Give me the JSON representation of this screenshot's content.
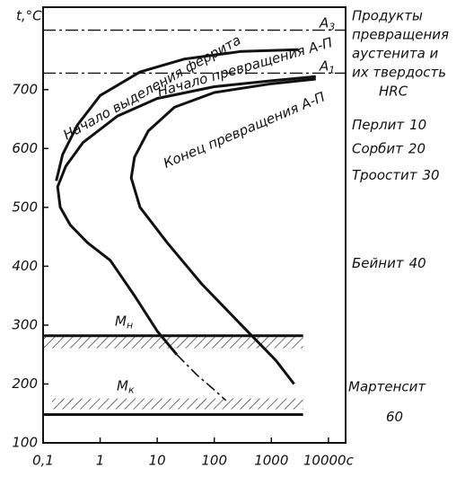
{
  "chart_data": {
    "type": "line",
    "x_log": true,
    "y_label": "t,°C",
    "xlim": [
      0.1,
      20000
    ],
    "ylim": [
      100,
      840
    ],
    "xticks": [
      {
        "value": 0.1,
        "label": "0,1"
      },
      1,
      10,
      100,
      1000,
      {
        "value": 10000,
        "label": "10000с"
      }
    ],
    "yticks": [
      100,
      200,
      300,
      400,
      500,
      600,
      700
    ],
    "series": [
      {
        "name": "Начало выделения феррита",
        "color": "#111",
        "style": "solid",
        "x": [
          3000,
          300,
          30,
          5,
          1,
          0.4,
          0.22,
          0.17
        ],
        "values": [
          768,
          765,
          752,
          730,
          690,
          640,
          590,
          545
        ]
      },
      {
        "name": "Начало превращения А-П",
        "color": "#111",
        "style": "solid",
        "x": [
          6000,
          1000,
          100,
          10,
          2,
          0.5,
          0.25,
          0.18,
          0.2,
          0.3,
          0.6,
          1.5,
          4,
          10,
          22
        ],
        "values": [
          722,
          715,
          705,
          685,
          655,
          610,
          570,
          535,
          500,
          470,
          440,
          410,
          350,
          290,
          250
        ]
      },
      {
        "color": "#111",
        "style": "dashdot",
        "x": [
          22,
          50,
          100,
          160
        ],
        "values": [
          250,
          215,
          190,
          172
        ]
      },
      {
        "name": "Конец превращения А-П",
        "color": "#111",
        "style": "solid",
        "x": [
          6000,
          1000,
          100,
          20,
          7,
          4,
          3.5,
          5,
          15,
          60,
          300,
          1200,
          2500
        ],
        "values": [
          718,
          710,
          695,
          670,
          630,
          585,
          550,
          500,
          440,
          370,
          300,
          240,
          200
        ]
      }
    ],
    "reference_lines": [
      {
        "label": "A",
        "sub": "3",
        "value": 801,
        "style": "dashdot"
      },
      {
        "label": "A",
        "sub": "1",
        "value": 728,
        "style": "dashdot"
      },
      {
        "label": "M",
        "sub": "н",
        "value": 282,
        "style": "thick",
        "xmax": 3600,
        "hatch": "below"
      },
      {
        "label": "M",
        "sub": "к",
        "value": 148,
        "style": "thick",
        "xmax": 3600,
        "hatch": "above"
      }
    ],
    "side_header": [
      "Продукты",
      "превращения",
      "аустенита и",
      "их твердость",
      "HRC"
    ],
    "products": [
      {
        "name": "Перлит",
        "hrc": 10,
        "t": 640
      },
      {
        "name": "Сорбит",
        "hrc": 20,
        "t": 600
      },
      {
        "name": "Троостит",
        "hrc": 30,
        "t": 555
      },
      {
        "name": "Бейнит",
        "hrc": 40,
        "t": 405
      },
      {
        "name": "Мартенсит",
        "hrc": 60,
        "t": 195
      }
    ]
  }
}
